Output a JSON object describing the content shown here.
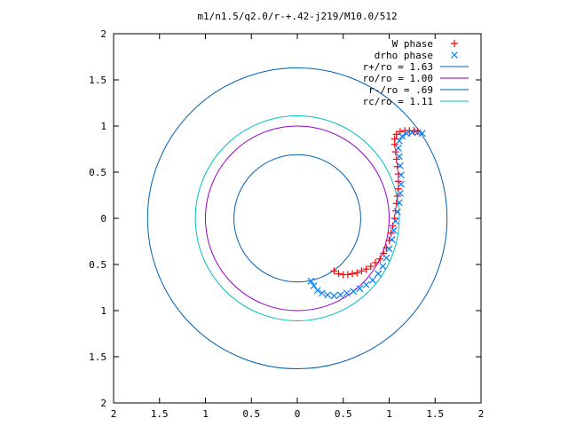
{
  "chart_data": {
    "type": "scatter",
    "title": "m1/n1.5/q2.0/r-+.42-j219/M10.0/512",
    "xlabel": "",
    "ylabel": "",
    "xlim": [
      -2,
      2
    ],
    "ylim": [
      -2,
      2
    ],
    "grid": false,
    "legend_position": "top-right",
    "x_ticks": [
      -2,
      -1.5,
      -1,
      -0.5,
      0,
      0.5,
      1,
      1.5,
      2
    ],
    "y_ticks": [
      -2,
      -1.5,
      -1,
      -0.5,
      0,
      0.5,
      1,
      1.5,
      2
    ],
    "x_tick_labels": [
      "2",
      "1.5",
      "1",
      "0.5",
      "0",
      "0.5",
      "1",
      "1.5",
      "2"
    ],
    "y_tick_labels": [
      "2",
      "1.5",
      "1",
      "0.5",
      "0",
      "0.5",
      "1",
      "1.5",
      "2"
    ],
    "series": [
      {
        "name": "W phase",
        "kind": "points",
        "marker": "+",
        "color": "#ff0000",
        "points": [
          [
            0.4,
            -0.57
          ],
          [
            0.45,
            -0.6
          ],
          [
            0.5,
            -0.61
          ],
          [
            0.55,
            -0.61
          ],
          [
            0.6,
            -0.6
          ],
          [
            0.65,
            -0.59
          ],
          [
            0.7,
            -0.57
          ],
          [
            0.75,
            -0.55
          ],
          [
            0.8,
            -0.52
          ],
          [
            0.85,
            -0.48
          ],
          [
            0.9,
            -0.44
          ],
          [
            0.94,
            -0.38
          ],
          [
            0.97,
            -0.32
          ],
          [
            1.0,
            -0.24
          ],
          [
            1.02,
            -0.16
          ],
          [
            1.04,
            -0.08
          ],
          [
            1.06,
            0.0
          ],
          [
            1.07,
            0.08
          ],
          [
            1.08,
            0.16
          ],
          [
            1.09,
            0.24
          ],
          [
            1.1,
            0.32
          ],
          [
            1.1,
            0.4
          ],
          [
            1.1,
            0.48
          ],
          [
            1.09,
            0.56
          ],
          [
            1.08,
            0.64
          ],
          [
            1.07,
            0.72
          ],
          [
            1.06,
            0.8
          ],
          [
            1.06,
            0.86
          ],
          [
            1.08,
            0.91
          ],
          [
            1.12,
            0.94
          ],
          [
            1.17,
            0.95
          ],
          [
            1.22,
            0.95
          ],
          [
            1.27,
            0.95
          ],
          [
            1.31,
            0.94
          ]
        ]
      },
      {
        "name": "drho phase",
        "kind": "points",
        "marker": "x",
        "color": "#0080ff",
        "points": [
          [
            0.15,
            -0.68
          ],
          [
            0.18,
            -0.73
          ],
          [
            0.22,
            -0.78
          ],
          [
            0.27,
            -0.81
          ],
          [
            0.33,
            -0.83
          ],
          [
            0.4,
            -0.84
          ],
          [
            0.47,
            -0.83
          ],
          [
            0.54,
            -0.81
          ],
          [
            0.61,
            -0.79
          ],
          [
            0.68,
            -0.76
          ],
          [
            0.75,
            -0.72
          ],
          [
            0.82,
            -0.67
          ],
          [
            0.88,
            -0.6
          ],
          [
            0.93,
            -0.52
          ],
          [
            0.97,
            -0.43
          ],
          [
            1.0,
            -0.33
          ],
          [
            1.03,
            -0.23
          ],
          [
            1.05,
            -0.13
          ],
          [
            1.07,
            -0.03
          ],
          [
            1.09,
            0.07
          ],
          [
            1.11,
            0.17
          ],
          [
            1.12,
            0.27
          ],
          [
            1.13,
            0.37
          ],
          [
            1.13,
            0.47
          ],
          [
            1.12,
            0.57
          ],
          [
            1.11,
            0.67
          ],
          [
            1.1,
            0.76
          ],
          [
            1.11,
            0.84
          ],
          [
            1.14,
            0.89
          ],
          [
            1.19,
            0.92
          ],
          [
            1.25,
            0.93
          ],
          [
            1.31,
            0.93
          ],
          [
            1.36,
            0.92
          ]
        ]
      },
      {
        "name": "r+/ro = 1.63",
        "kind": "circle",
        "radius": 1.63,
        "color": "#0060ad"
      },
      {
        "name": "ro/ro = 1.00",
        "kind": "circle",
        "radius": 1.0,
        "color": "#9400d3"
      },
      {
        "name": "r-/ro = .69",
        "kind": "circle",
        "radius": 0.69,
        "color": "#0060ad"
      },
      {
        "name": "rc/ro = 1.11",
        "kind": "circle",
        "radius": 1.11,
        "color": "#00c0c0"
      }
    ]
  }
}
